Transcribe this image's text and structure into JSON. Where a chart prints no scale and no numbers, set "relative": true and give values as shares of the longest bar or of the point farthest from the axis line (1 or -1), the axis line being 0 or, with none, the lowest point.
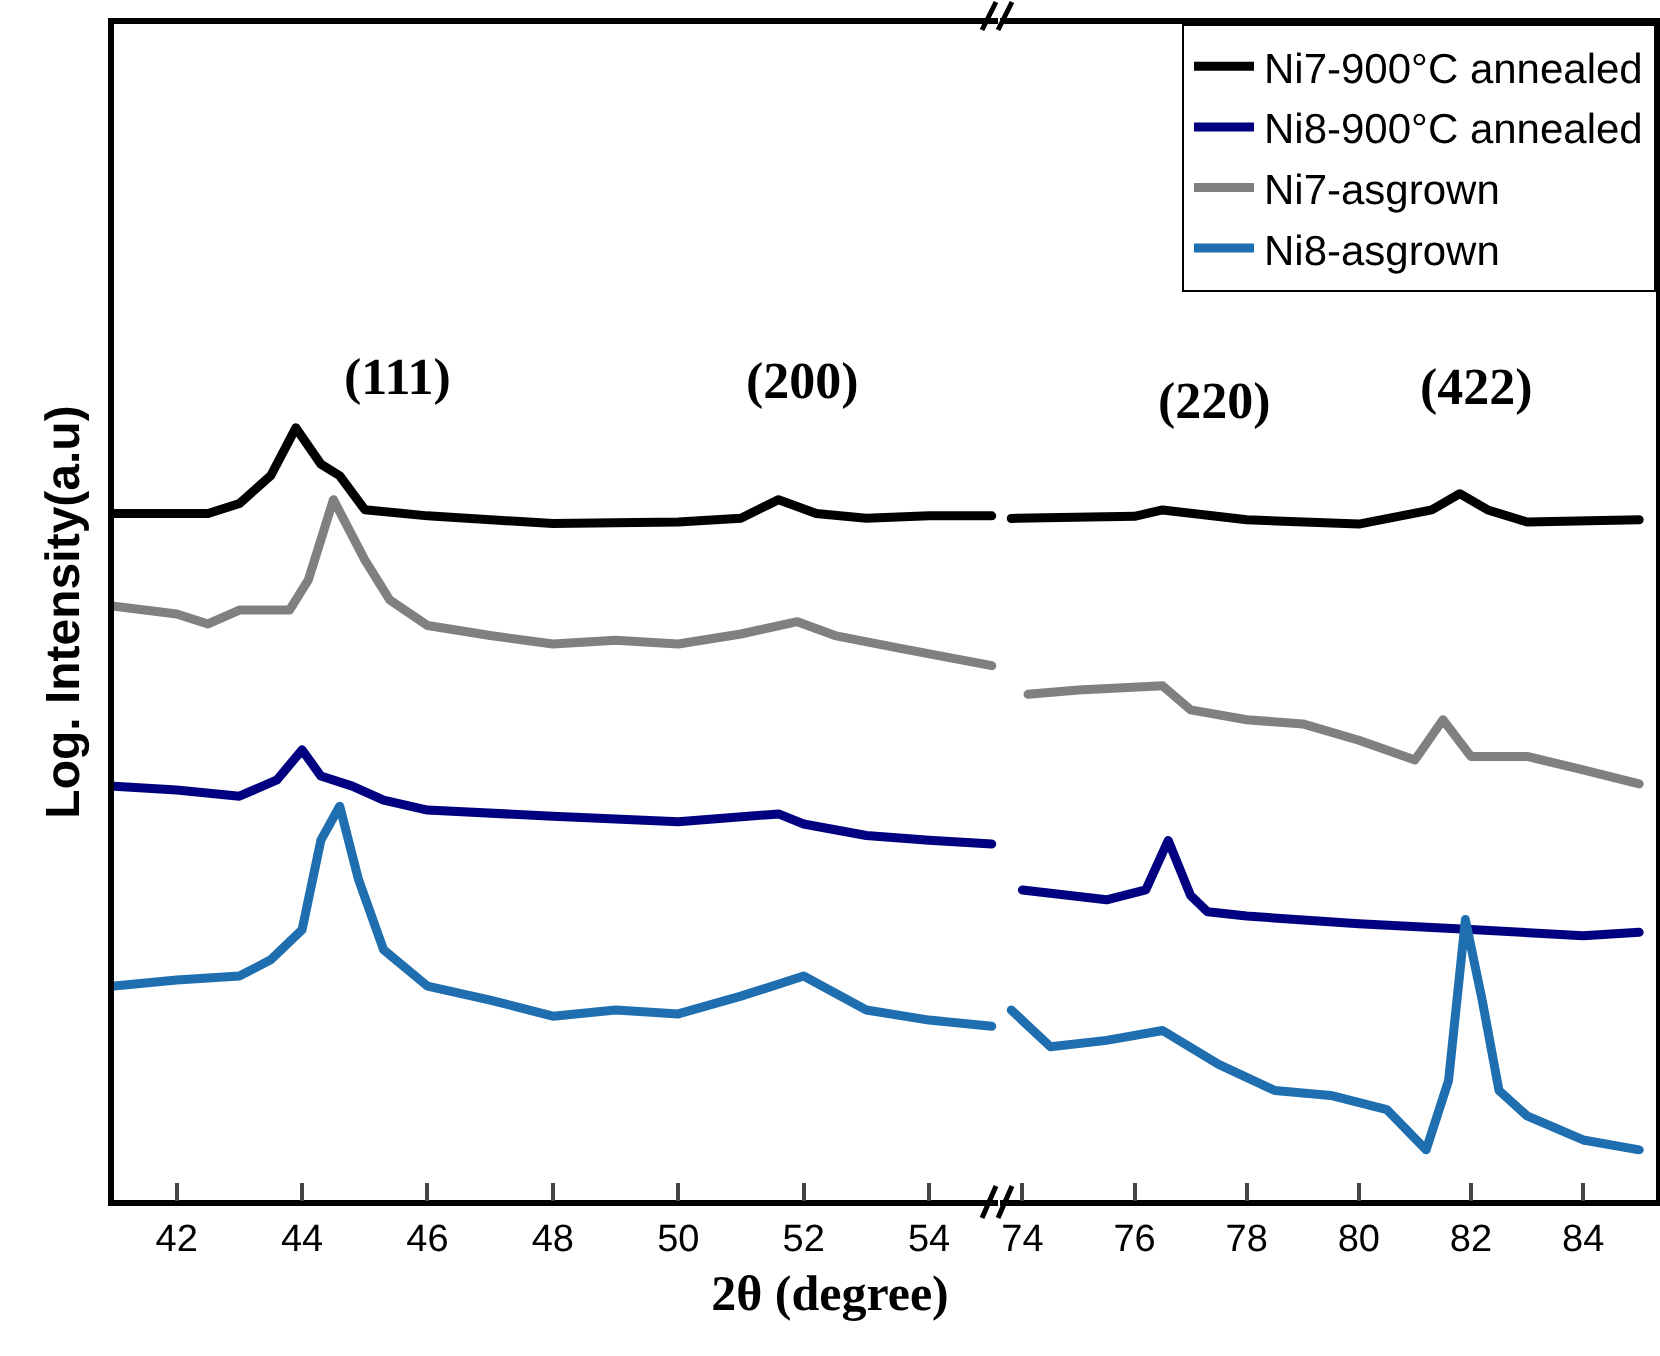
{
  "chart_data": [
    {
      "type": "line",
      "relative": true,
      "xlabel": "2θ (degree)",
      "ylabel": "Log. Intensity(a.u)",
      "xlim": [
        41,
        55.1
      ],
      "xticks": [
        42,
        44,
        46,
        48,
        50,
        52,
        54
      ],
      "tick_labels": "x",
      "line_style": "solid",
      "marker": "none",
      "grid": false,
      "annotations": [
        "(111)",
        "(200)"
      ],
      "series": [
        {
          "color": "#000000",
          "x": [
            41,
            42.5,
            43,
            43.5,
            43.9,
            44.3,
            44.6,
            45,
            46,
            48,
            50,
            51,
            51.6,
            52.2,
            53,
            54,
            55
          ],
          "values": [
            0.889,
            0.889,
            0.902,
            0.938,
            1,
            0.953,
            0.938,
            0.894,
            0.886,
            0.876,
            0.878,
            0.883,
            0.907,
            0.889,
            0.883,
            0.886,
            0.886
          ]
        },
        {
          "color": "#000080",
          "x": [
            41,
            42,
            43,
            43.6,
            44,
            44.3,
            44.8,
            45.3,
            46,
            48,
            50,
            51.6,
            52,
            53,
            54,
            55
          ],
          "values": [
            0.536,
            0.531,
            0.523,
            0.544,
            0.583,
            0.549,
            0.536,
            0.518,
            0.505,
            0.497,
            0.49,
            0.5,
            0.487,
            0.472,
            0.466,
            0.461
          ]
        },
        {
          "color": "#808080",
          "x": [
            41,
            42,
            42.5,
            43,
            43.8,
            44.1,
            44.5,
            45,
            45.4,
            46,
            47,
            48,
            49,
            50,
            51,
            51.9,
            52.5,
            53.5,
            55
          ],
          "values": [
            0.769,
            0.759,
            0.746,
            0.764,
            0.764,
            0.803,
            0.907,
            0.829,
            0.777,
            0.744,
            0.731,
            0.72,
            0.725,
            0.72,
            0.733,
            0.749,
            0.731,
            0.715,
            0.692
          ]
        },
        {
          "color": "#1f6fb0",
          "x": [
            41,
            42,
            43,
            43.5,
            44,
            44.3,
            44.6,
            44.9,
            45.3,
            46,
            47,
            48,
            49,
            50,
            51,
            52,
            53,
            54,
            55
          ],
          "values": [
            0.277,
            0.285,
            0.29,
            0.311,
            0.35,
            0.466,
            0.51,
            0.415,
            0.324,
            0.277,
            0.259,
            0.238,
            0.246,
            0.241,
            0.264,
            0.29,
            0.246,
            0.233,
            0.225
          ]
        }
      ]
    },
    {
      "type": "line",
      "relative": true,
      "xlim": [
        73.6,
        85.3
      ],
      "xticks": [
        74,
        76,
        78,
        80,
        82,
        84
      ],
      "tick_labels": "x",
      "line_style": "solid",
      "marker": "none",
      "grid": false,
      "legend": "top right",
      "annotations": [
        "(220)",
        "(422)"
      ],
      "series": [
        {
          "name": "Ni7-900°C annealed",
          "color": "#000000",
          "x": [
            73.8,
            76,
            76.5,
            78,
            80,
            81.3,
            81.8,
            82.3,
            83,
            85
          ],
          "values": [
            0.965,
            0.968,
            0.977,
            0.963,
            0.957,
            0.977,
            1,
            0.977,
            0.96,
            0.963
          ]
        },
        {
          "name": "Ni8-900°C annealed",
          "color": "#000080",
          "x": [
            74,
            75.5,
            76.2,
            76.6,
            77,
            77.3,
            78,
            80,
            82,
            84,
            85
          ],
          "values": [
            0.439,
            0.425,
            0.439,
            0.509,
            0.431,
            0.408,
            0.402,
            0.391,
            0.383,
            0.374,
            0.379
          ]
        },
        {
          "name": "Ni7-asgrown",
          "color": "#808080",
          "x": [
            74.1,
            75,
            76.5,
            77,
            78,
            79,
            80,
            81,
            81.5,
            82,
            83,
            84,
            85
          ],
          "values": [
            0.716,
            0.722,
            0.728,
            0.694,
            0.68,
            0.674,
            0.651,
            0.623,
            0.68,
            0.628,
            0.628,
            0.609,
            0.589
          ]
        },
        {
          "name": "Ni8-asgrown",
          "color": "#1f6fb0",
          "x": [
            73.8,
            74.5,
            75.5,
            76.5,
            77.5,
            78.5,
            79.5,
            80.5,
            81.2,
            81.6,
            81.9,
            82.2,
            82.5,
            83,
            84,
            85
          ],
          "values": [
            0.269,
            0.217,
            0.226,
            0.24,
            0.192,
            0.155,
            0.148,
            0.128,
            0.071,
            0.169,
            0.397,
            0.283,
            0.155,
            0.119,
            0.085,
            0.071
          ]
        }
      ]
    }
  ]
}
